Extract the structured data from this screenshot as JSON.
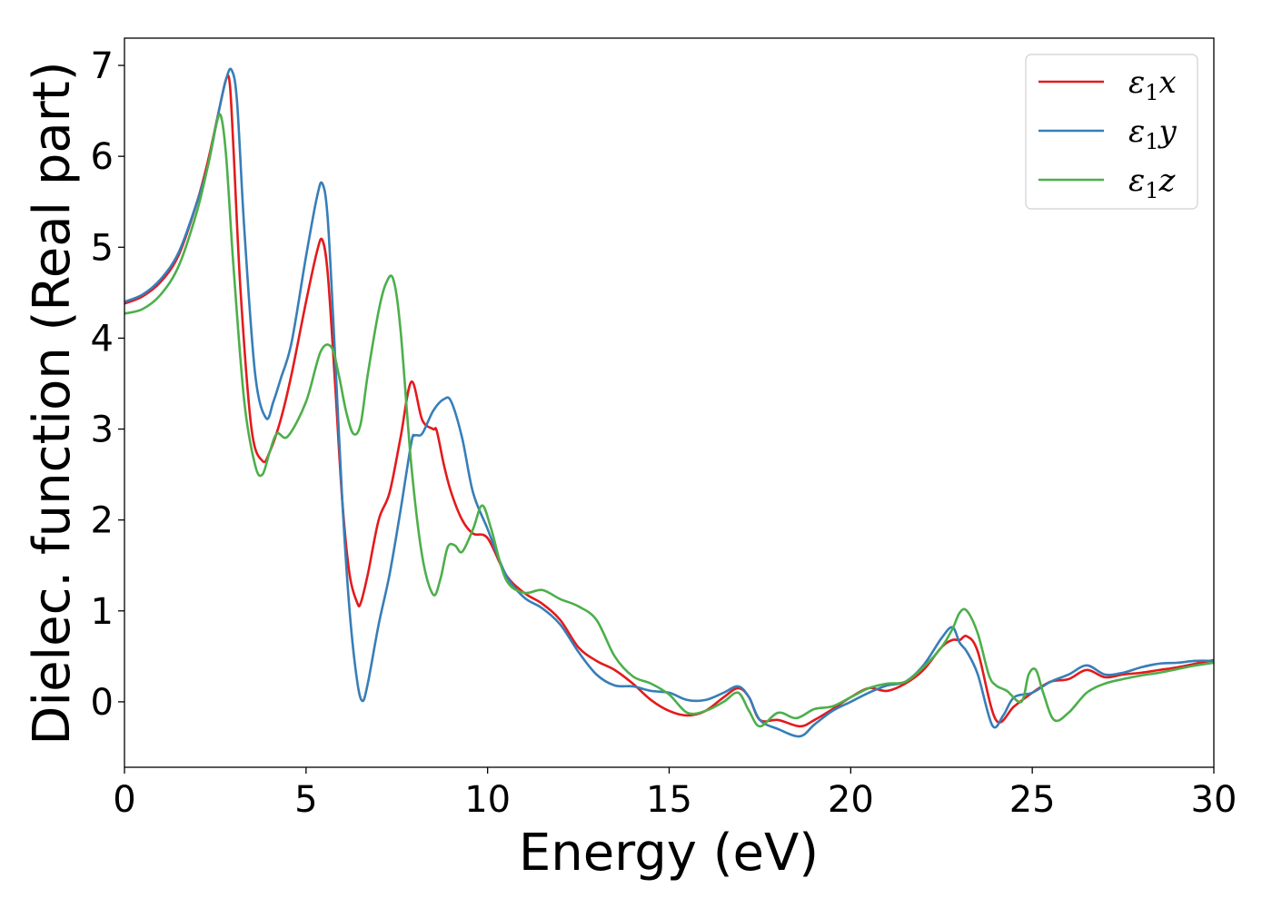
{
  "chart_data": {
    "type": "line",
    "title": "",
    "xlabel": "Energy (eV)",
    "ylabel": "Dielec. function (Real part)",
    "xlim": [
      0,
      30
    ],
    "ylim": [
      -0.72,
      7.3
    ],
    "xticks": [
      0,
      5,
      10,
      15,
      20,
      25,
      30
    ],
    "yticks": [
      0,
      1,
      2,
      3,
      4,
      5,
      6,
      7
    ],
    "xtick_labels": [
      "0",
      "5",
      "10",
      "15",
      "20",
      "25",
      "30"
    ],
    "ytick_labels": [
      "0",
      "1",
      "2",
      "3",
      "4",
      "5",
      "6",
      "7"
    ],
    "grid": false,
    "legend_position": "top-right",
    "series": [
      {
        "name": "ε1x",
        "legend_base": "ε",
        "legend_sub": "1",
        "legend_var": "x",
        "color": "#e41a1c",
        "x": [
          0,
          0.5,
          1,
          1.5,
          2,
          2.3,
          2.6,
          2.8,
          2.9,
          3.0,
          3.2,
          3.5,
          3.8,
          4.0,
          4.3,
          4.6,
          5.0,
          5.3,
          5.45,
          5.6,
          5.8,
          6.0,
          6.2,
          6.4,
          6.5,
          6.7,
          7.0,
          7.3,
          7.6,
          7.9,
          8.2,
          8.5,
          8.6,
          8.8,
          9.0,
          9.3,
          9.6,
          10.0,
          10.5,
          11.0,
          11.5,
          12.0,
          12.5,
          13.0,
          13.5,
          14.0,
          14.5,
          15.0,
          15.5,
          16.0,
          16.5,
          16.9,
          17.2,
          17.5,
          18.0,
          18.6,
          19.0,
          19.5,
          20.0,
          20.5,
          21.0,
          21.5,
          22.0,
          22.5,
          22.8,
          23.0,
          23.2,
          23.5,
          24.0,
          24.5,
          25.0,
          25.5,
          26.0,
          26.5,
          27.0,
          27.5,
          28.0,
          28.5,
          29.0,
          29.5,
          30.0
        ],
        "y": [
          4.38,
          4.46,
          4.62,
          4.92,
          5.5,
          5.95,
          6.5,
          6.85,
          6.8,
          6.1,
          4.5,
          3.0,
          2.65,
          2.75,
          3.1,
          3.6,
          4.4,
          4.95,
          5.08,
          4.7,
          3.5,
          2.2,
          1.4,
          1.1,
          1.08,
          1.4,
          2.0,
          2.3,
          2.9,
          3.52,
          3.1,
          3.0,
          2.98,
          2.6,
          2.3,
          2.0,
          1.85,
          1.8,
          1.4,
          1.2,
          1.08,
          0.9,
          0.6,
          0.45,
          0.35,
          0.2,
          0.02,
          -0.1,
          -0.15,
          -0.1,
          0.05,
          0.15,
          0.05,
          -0.2,
          -0.2,
          -0.27,
          -0.2,
          -0.08,
          0.05,
          0.15,
          0.12,
          0.2,
          0.35,
          0.6,
          0.68,
          0.68,
          0.72,
          0.55,
          -0.2,
          -0.05,
          0.1,
          0.22,
          0.25,
          0.35,
          0.27,
          0.3,
          0.32,
          0.35,
          0.38,
          0.42,
          0.46
        ]
      },
      {
        "name": "ε1y",
        "legend_base": "ε",
        "legend_sub": "1",
        "legend_var": "y",
        "color": "#377eb8",
        "x": [
          0,
          0.5,
          1,
          1.5,
          2,
          2.3,
          2.6,
          2.8,
          2.95,
          3.1,
          3.3,
          3.6,
          3.9,
          4.1,
          4.3,
          4.6,
          5.0,
          5.3,
          5.45,
          5.6,
          5.8,
          6.0,
          6.2,
          6.4,
          6.55,
          6.7,
          7.0,
          7.3,
          7.6,
          7.9,
          8.0,
          8.2,
          8.5,
          8.8,
          9.0,
          9.3,
          9.6,
          10.0,
          10.5,
          11.0,
          11.5,
          12.0,
          12.5,
          13.0,
          13.5,
          14.0,
          14.5,
          15.0,
          15.5,
          16.0,
          16.5,
          16.9,
          17.2,
          17.5,
          18.0,
          18.6,
          19.0,
          19.5,
          20.0,
          20.5,
          21.0,
          21.5,
          22.0,
          22.5,
          22.8,
          23.0,
          23.2,
          23.5,
          23.9,
          24.2,
          24.5,
          25.0,
          25.5,
          26.0,
          26.5,
          27.0,
          27.5,
          28.0,
          28.5,
          29.0,
          29.5,
          30.0
        ],
        "y": [
          4.4,
          4.48,
          4.65,
          4.95,
          5.5,
          5.9,
          6.5,
          6.85,
          6.95,
          6.6,
          5.2,
          3.6,
          3.12,
          3.3,
          3.55,
          3.95,
          4.9,
          5.55,
          5.7,
          5.3,
          3.8,
          2.2,
          1.0,
          0.25,
          0.01,
          0.2,
          0.85,
          1.4,
          2.1,
          2.85,
          2.93,
          2.95,
          3.2,
          3.33,
          3.3,
          2.9,
          2.3,
          1.9,
          1.4,
          1.15,
          1.03,
          0.85,
          0.55,
          0.3,
          0.18,
          0.17,
          0.12,
          0.1,
          0.02,
          0.02,
          0.1,
          0.17,
          0.05,
          -0.2,
          -0.3,
          -0.38,
          -0.25,
          -0.1,
          0.0,
          0.1,
          0.18,
          0.22,
          0.4,
          0.7,
          0.82,
          0.65,
          0.55,
          0.3,
          -0.26,
          -0.15,
          0.05,
          0.1,
          0.22,
          0.3,
          0.4,
          0.3,
          0.32,
          0.38,
          0.42,
          0.43,
          0.45,
          0.45
        ]
      },
      {
        "name": "ε1z",
        "legend_base": "ε",
        "legend_sub": "1",
        "legend_var": "z",
        "color": "#4daf4a",
        "x": [
          0,
          0.5,
          1,
          1.5,
          2,
          2.3,
          2.5,
          2.65,
          2.8,
          3.0,
          3.3,
          3.6,
          3.8,
          4.0,
          4.2,
          4.5,
          5.0,
          5.4,
          5.7,
          5.9,
          6.1,
          6.3,
          6.5,
          6.7,
          7.0,
          7.2,
          7.4,
          7.6,
          7.9,
          8.2,
          8.5,
          8.7,
          8.9,
          9.1,
          9.3,
          9.6,
          9.85,
          10.1,
          10.5,
          11.0,
          11.5,
          12.0,
          12.5,
          13.0,
          13.5,
          14.0,
          14.5,
          15.0,
          15.5,
          16.0,
          16.5,
          16.9,
          17.2,
          17.5,
          18.0,
          18.5,
          19.0,
          19.5,
          20.0,
          20.5,
          21.0,
          21.5,
          22.0,
          22.5,
          22.8,
          23.0,
          23.2,
          23.5,
          23.8,
          24.0,
          24.3,
          24.7,
          24.9,
          25.1,
          25.3,
          25.6,
          26.0,
          26.5,
          27.0,
          27.5,
          28.0,
          28.5,
          29.0,
          29.5,
          30.0
        ],
        "y": [
          4.27,
          4.32,
          4.48,
          4.8,
          5.4,
          5.9,
          6.3,
          6.45,
          6.0,
          4.8,
          3.3,
          2.6,
          2.5,
          2.75,
          2.95,
          2.92,
          3.3,
          3.85,
          3.9,
          3.6,
          3.2,
          2.95,
          3.05,
          3.6,
          4.3,
          4.6,
          4.65,
          4.1,
          2.6,
          1.6,
          1.18,
          1.35,
          1.7,
          1.72,
          1.65,
          1.9,
          2.16,
          1.9,
          1.35,
          1.2,
          1.23,
          1.13,
          1.05,
          0.9,
          0.5,
          0.28,
          0.2,
          0.08,
          -0.12,
          -0.1,
          0.0,
          0.1,
          -0.1,
          -0.27,
          -0.12,
          -0.18,
          -0.08,
          -0.05,
          0.05,
          0.15,
          0.2,
          0.22,
          0.38,
          0.6,
          0.8,
          0.98,
          1.0,
          0.75,
          0.3,
          0.18,
          0.12,
          0.0,
          0.3,
          0.35,
          0.1,
          -0.2,
          -0.12,
          0.1,
          0.2,
          0.25,
          0.29,
          0.32,
          0.36,
          0.4,
          0.43
        ]
      }
    ]
  }
}
